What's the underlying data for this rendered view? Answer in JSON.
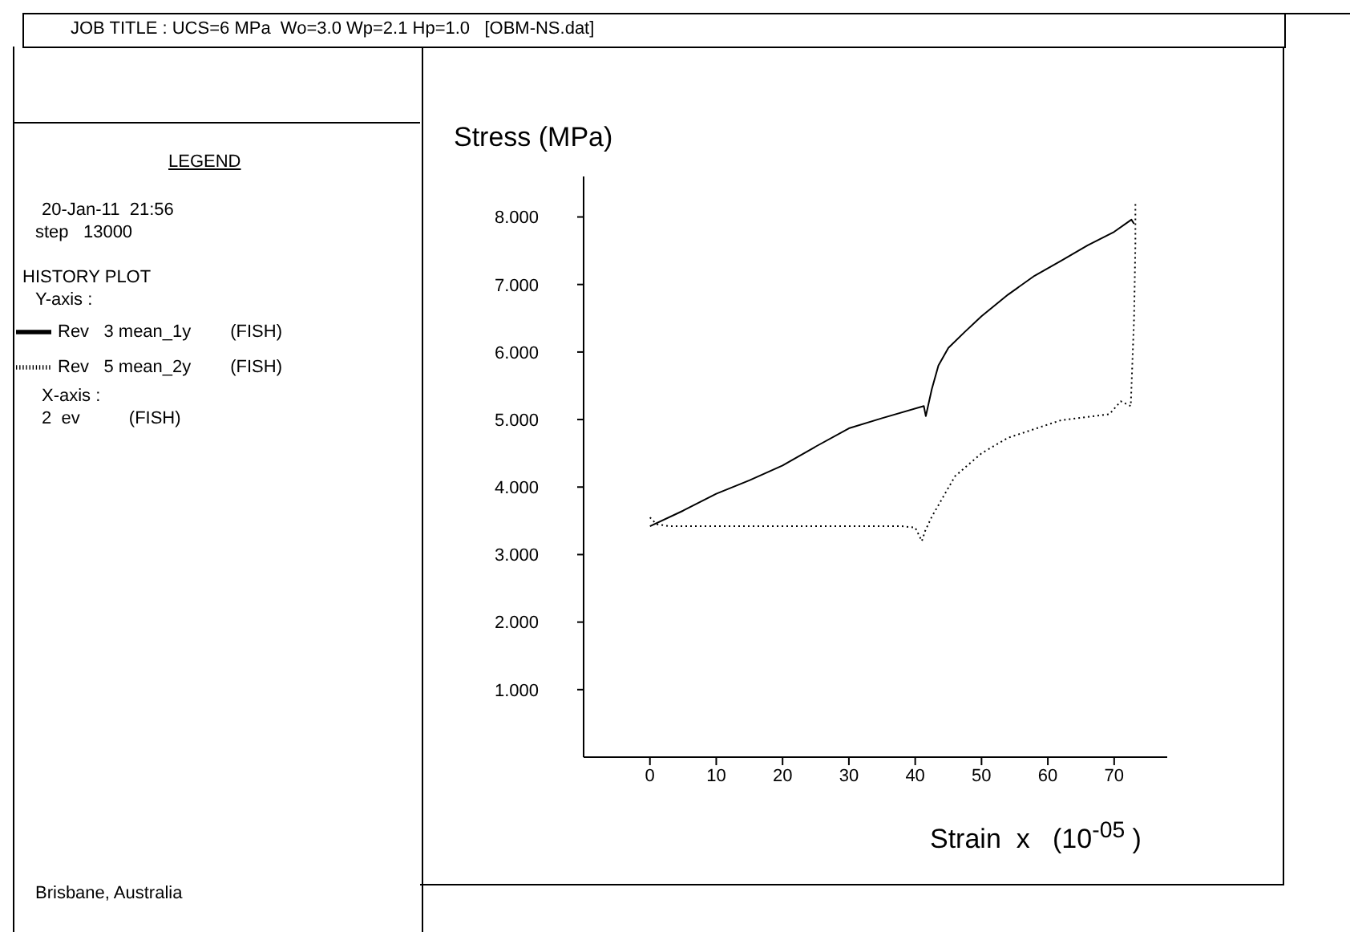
{
  "chart_data": {
    "type": "line",
    "title": "JOB TITLE : UCS=6 MPa  Wo=3.0 Wp=2.1 Hp=1.0   [OBM-NS.dat]",
    "xlabel": "Strain  x   (10$^{-05}$ )",
    "ylabel": "Stress  (MPa)",
    "annotations": [
      "LEGEND",
      "20-Jan-11  21:56",
      "step   13000",
      "HISTORY PLOT",
      "Y-axis :",
      "X-axis :",
      "2  ev          (FISH)",
      "Brisbane, Australia"
    ],
    "series": [
      {
        "name": "Rev   3 mean_1y        (FISH)",
        "color": "#000000",
        "line_style": "solid",
        "x": [
          0,
          5,
          10,
          15,
          20,
          25,
          30,
          35,
          41.3,
          41.6,
          42.5,
          43.5,
          45,
          47.5,
          50,
          54,
          58,
          62,
          66,
          70,
          72.6,
          73
        ],
        "values": [
          3.42,
          3.65,
          3.9,
          4.1,
          4.32,
          4.6,
          4.87,
          5.02,
          5.2,
          5.05,
          5.45,
          5.8,
          6.06,
          6.3,
          6.53,
          6.85,
          7.13,
          7.35,
          7.58,
          7.78,
          7.96,
          7.9
        ]
      },
      {
        "name": "Rev   5 mean_2y        (FISH)",
        "color": "#000000",
        "line_style": "dotted",
        "x": [
          0,
          1,
          3,
          10,
          20,
          30,
          38,
          40,
          41,
          41.5,
          42.5,
          46,
          50,
          54,
          62,
          69.3,
          71,
          72.5,
          73,
          73.2,
          73.2
        ],
        "values": [
          3.55,
          3.45,
          3.42,
          3.42,
          3.42,
          3.42,
          3.42,
          3.4,
          3.2,
          3.35,
          3.56,
          4.16,
          4.5,
          4.73,
          4.99,
          5.08,
          5.27,
          5.2,
          6.5,
          7.6,
          8.2
        ]
      }
    ],
    "xlim": [
      -10,
      78
    ],
    "xticks": [
      0,
      10,
      20,
      30,
      40,
      50,
      60,
      70
    ],
    "ylim": [
      0,
      8.6
    ],
    "yticks": [
      {
        "value": 1,
        "label": "1.000"
      },
      {
        "value": 2,
        "label": "2.000"
      },
      {
        "value": 3,
        "label": "3.000"
      },
      {
        "value": 4,
        "label": "4.000"
      },
      {
        "value": 5,
        "label": "5.000"
      },
      {
        "value": 6,
        "label": "6.000"
      },
      {
        "value": 7,
        "label": "7.000"
      },
      {
        "value": 8,
        "label": "8.000"
      }
    ],
    "grid": false,
    "legend": "left",
    "marker": "none"
  }
}
